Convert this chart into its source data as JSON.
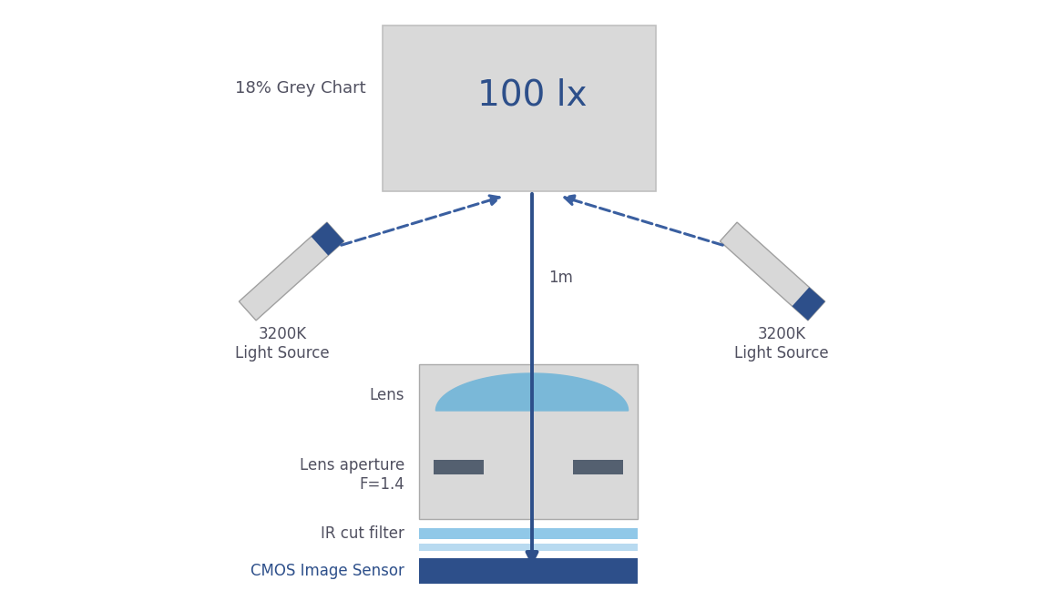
{
  "bg_color": "#ffffff",
  "grey_chart_color": "#d9d9d9",
  "grey_chart_border": "#c0c0c0",
  "dark_blue": "#2d4f8a",
  "mid_blue": "#5577aa",
  "dashed_color": "#3a5fa0",
  "camera_box_color": "#d9d9d9",
  "camera_box_border": "#aaaaaa",
  "lens_color": "#7ab8d8",
  "ir_filter_color_1": "#90c8e8",
  "ir_filter_color_2": "#b8daf0",
  "cmos_color": "#2d4f8a",
  "light_source_body": "#d8d8d8",
  "light_source_border": "#a0a0a0",
  "light_source_stripe": "#2d4f8a",
  "aperture_blade_color": "#546070",
  "grey_chart_text": "100 lx",
  "grey_chart_label": "18% Grey Chart",
  "label_3200K_left": "3200K\nLight Source",
  "label_3200K_right": "3200K\nLight Source",
  "label_1m": "1m",
  "label_lens": "Lens",
  "label_aperture": "Lens aperture\nF=1.4",
  "label_ir": "IR cut filter",
  "label_cmos": "CMOS Image Sensor",
  "text_color_dark": "#505060",
  "text_color_blue": "#2d4f8a"
}
